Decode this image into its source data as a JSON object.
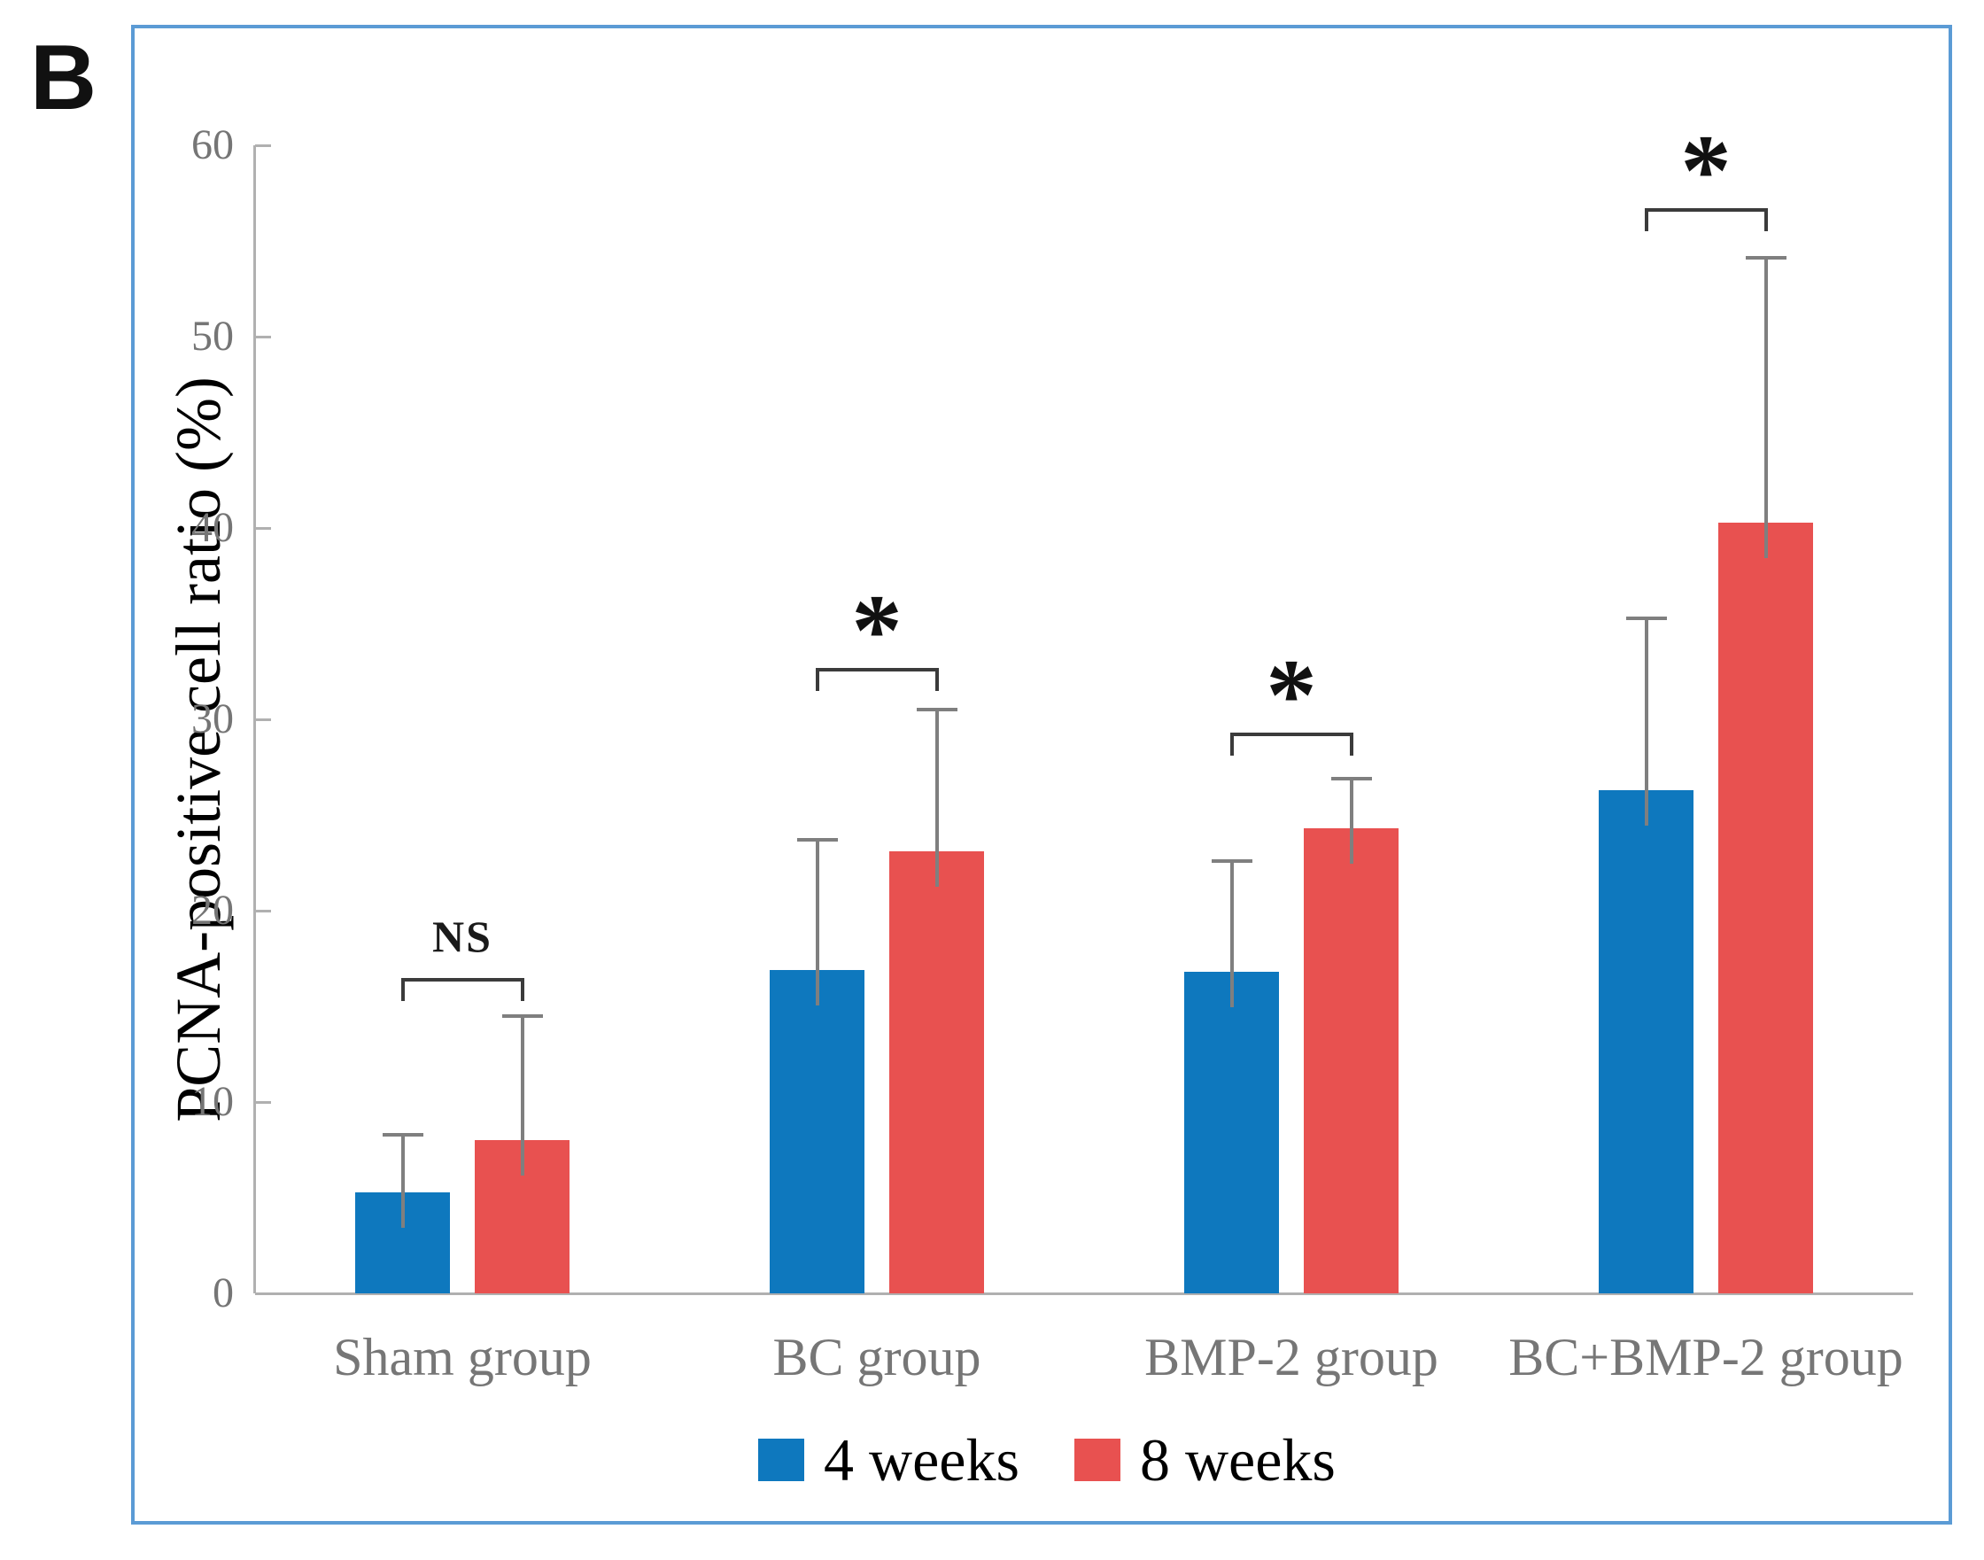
{
  "panel_label": "B",
  "y_axis": {
    "title": "PCNA-positive cell ratio (%)",
    "tick_labels": [
      "0",
      "10",
      "20",
      "30",
      "40",
      "50",
      "60"
    ],
    "min": 0,
    "max": 60
  },
  "legend": [
    {
      "label": "4 weeks",
      "color": "#0E78BE"
    },
    {
      "label": "8 weeks",
      "color": "#E85150"
    }
  ],
  "colors": {
    "bar_4_weeks": "#0E78BE",
    "bar_8_weeks": "#E85150",
    "box_border": "#5B9BD5",
    "axis_line": "#b0b0b0",
    "tick_label": "#757575",
    "error_bar": "#7f7f7f",
    "bracket": "#3b3b3b"
  },
  "chart_data": {
    "type": "bar",
    "title": "",
    "xlabel": "",
    "ylabel": "PCNA-positive cell ratio (%)",
    "ylim": [
      0,
      60
    ],
    "grid": false,
    "legend_position": "bottom",
    "categories": [
      "Sham group",
      "BC group",
      "BMP-2 group",
      "BC+BMP-2 group"
    ],
    "series": [
      {
        "name": "4 weeks",
        "color": "#0E78BE",
        "values": [
          5.3,
          16.9,
          16.8,
          26.3
        ],
        "errors_up": [
          3.0,
          6.8,
          5.8,
          9.0
        ]
      },
      {
        "name": "8 weeks",
        "color": "#E85150",
        "values": [
          8.0,
          23.1,
          24.3,
          40.3
        ],
        "errors_up": [
          6.5,
          7.4,
          2.6,
          13.8
        ]
      }
    ],
    "significance": [
      {
        "group": "Sham group",
        "label": "NS",
        "bracket_y": 16.5
      },
      {
        "group": "BC group",
        "label": "*",
        "bracket_y": 32.7
      },
      {
        "group": "BMP-2 group",
        "label": "*",
        "bracket_y": 29.3
      },
      {
        "group": "BC+BMP-2 group",
        "label": "*",
        "bracket_y": 56.7
      }
    ]
  }
}
